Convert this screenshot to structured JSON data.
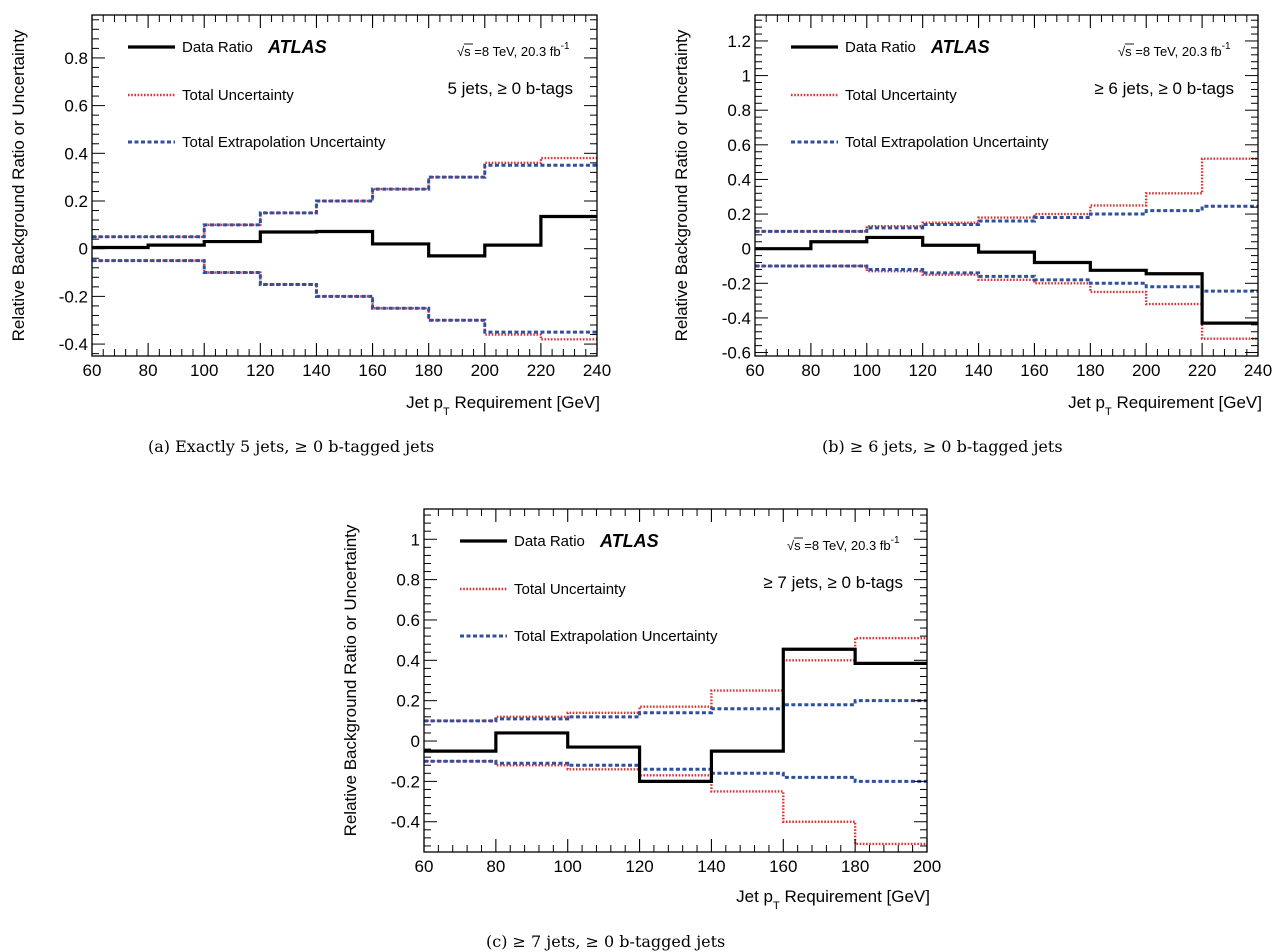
{
  "colors": {
    "data": "#000000",
    "total": "#e03030",
    "extrap": "#2f4f9f",
    "frame": "#000000"
  },
  "legend": {
    "data_ratio": "Data Ratio",
    "experiment": "ATLAS",
    "total_unc": "Total Uncertainty",
    "extrap_unc": "Total Extrapolation Uncertainty",
    "energy_prefix": "√s =8 TeV, 20.3 fb",
    "energy_sup": "-1"
  },
  "chart_data": [
    {
      "id": "a",
      "type": "line",
      "selection": "5 jets, ≥ 0 b-tags",
      "caption": "(a) Exactly 5 jets, ≥ 0 b-tagged jets",
      "ylabel": "Relative Background Ratio or Uncertainty",
      "xlabel_main": "Jet p",
      "xlabel_sub": "T",
      "xlabel_rest": " Requirement [GeV]",
      "xlim": [
        60,
        240
      ],
      "ylim": [
        -0.45,
        0.98
      ],
      "xticks": [
        60,
        80,
        100,
        120,
        140,
        160,
        180,
        200,
        220,
        240
      ],
      "yticks": [
        -0.4,
        -0.2,
        0,
        0.2,
        0.4,
        0.6,
        0.8
      ],
      "ytick_labels": [
        "-0.4",
        "-0.2",
        "0",
        "0.2",
        "0.4",
        "0.6",
        "0.8"
      ],
      "bin_edges": [
        60,
        80,
        100,
        120,
        140,
        160,
        180,
        200,
        220,
        240
      ],
      "series": [
        {
          "name": "Data Ratio",
          "values": [
            0.005,
            0.015,
            0.03,
            0.07,
            0.072,
            0.02,
            -0.03,
            0.015,
            0.135
          ]
        },
        {
          "name": "Total Uncertainty",
          "values": [
            0.05,
            0.05,
            0.1,
            0.15,
            0.2,
            0.25,
            0.3,
            0.36,
            0.38
          ]
        },
        {
          "name": "Total Extrapolation Uncertainty",
          "values": [
            0.05,
            0.05,
            0.1,
            0.15,
            0.2,
            0.25,
            0.3,
            0.35,
            0.35
          ]
        }
      ]
    },
    {
      "id": "b",
      "type": "line",
      "selection": "≥ 6 jets, ≥ 0 b-tags",
      "caption": "(b) ≥ 6 jets, ≥ 0 b-tagged jets",
      "ylabel": "Relative Background Ratio or Uncertainty",
      "xlabel_main": "Jet p",
      "xlabel_sub": "T",
      "xlabel_rest": " Requirement [GeV]",
      "xlim": [
        60,
        240
      ],
      "ylim": [
        -0.62,
        1.35
      ],
      "xticks": [
        60,
        80,
        100,
        120,
        140,
        160,
        180,
        200,
        220,
        240
      ],
      "yticks": [
        -0.6,
        -0.4,
        -0.2,
        0,
        0.2,
        0.4,
        0.6,
        0.8,
        1,
        1.2
      ],
      "ytick_labels": [
        "-0.6",
        "-0.4",
        "-0.2",
        "0",
        "0.2",
        "0.4",
        "0.6",
        "0.8",
        "1",
        "1.2"
      ],
      "bin_edges": [
        60,
        80,
        100,
        120,
        140,
        160,
        180,
        200,
        220,
        240
      ],
      "series": [
        {
          "name": "Data Ratio",
          "values": [
            0.0,
            0.04,
            0.065,
            0.02,
            -0.02,
            -0.08,
            -0.125,
            -0.145,
            -0.43
          ]
        },
        {
          "name": "Total Uncertainty",
          "values": [
            0.1,
            0.1,
            0.13,
            0.15,
            0.18,
            0.2,
            0.25,
            0.32,
            0.52
          ]
        },
        {
          "name": "Total Extrapolation Uncertainty",
          "values": [
            0.1,
            0.1,
            0.12,
            0.14,
            0.16,
            0.18,
            0.2,
            0.22,
            0.245
          ]
        }
      ]
    },
    {
      "id": "c",
      "type": "line",
      "selection": "≥ 7 jets, ≥ 0 b-tags",
      "caption": "(c) ≥ 7 jets, ≥ 0 b-tagged jets",
      "ylabel": "Relative Background Ratio or Uncertainty",
      "xlabel_main": "Jet p",
      "xlabel_sub": "T",
      "xlabel_rest": " Requirement [GeV]",
      "xlim": [
        60,
        200
      ],
      "ylim": [
        -0.55,
        1.15
      ],
      "xticks": [
        60,
        80,
        100,
        120,
        140,
        160,
        180,
        200
      ],
      "yticks": [
        -0.4,
        -0.2,
        0,
        0.2,
        0.4,
        0.6,
        0.8,
        1
      ],
      "ytick_labels": [
        "-0.4",
        "-0.2",
        "0",
        "0.2",
        "0.4",
        "0.6",
        "0.8",
        "1"
      ],
      "bin_edges": [
        60,
        80,
        100,
        120,
        140,
        160,
        180,
        200
      ],
      "series": [
        {
          "name": "Data Ratio",
          "values": [
            -0.05,
            0.04,
            -0.03,
            -0.2,
            -0.05,
            0.455,
            0.385
          ]
        },
        {
          "name": "Total Uncertainty",
          "values": [
            0.1,
            0.12,
            0.14,
            0.17,
            0.25,
            0.4,
            0.51
          ]
        },
        {
          "name": "Total Extrapolation Uncertainty",
          "values": [
            0.1,
            0.11,
            0.12,
            0.14,
            0.16,
            0.18,
            0.2
          ]
        }
      ]
    }
  ]
}
